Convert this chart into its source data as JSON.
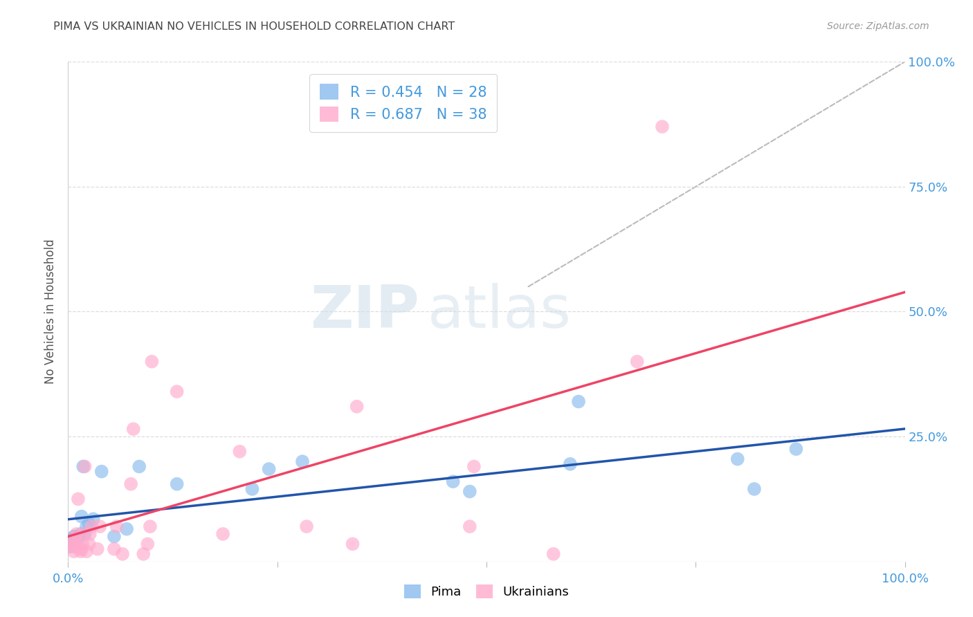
{
  "title": "PIMA VS UKRAINIAN NO VEHICLES IN HOUSEHOLD CORRELATION CHART",
  "source": "Source: ZipAtlas.com",
  "ylabel": "No Vehicles in Household",
  "xlim": [
    0,
    1
  ],
  "ylim": [
    0,
    1
  ],
  "xtick_vals": [
    0.0,
    0.25,
    0.5,
    0.75,
    1.0
  ],
  "xtick_labels_show": [
    "0.0%",
    "",
    "",
    "",
    "100.0%"
  ],
  "ytick_vals": [
    0.0,
    0.25,
    0.5,
    0.75,
    1.0
  ],
  "ytick_labels_right": [
    "",
    "25.0%",
    "50.0%",
    "75.0%",
    "100.0%"
  ],
  "pima_color": "#88BBEE",
  "ukrainian_color": "#FFAACC",
  "pima_line_color": "#2255AA",
  "ukrainian_line_color": "#EE4466",
  "diagonal_color": "#BBBBBB",
  "pima_R": 0.454,
  "pima_N": 28,
  "ukrainian_R": 0.687,
  "ukrainian_N": 38,
  "legend_label_pima": "Pima",
  "legend_label_ukrainian": "Ukrainians",
  "watermark_zip": "ZIP",
  "watermark_atlas": "atlas",
  "background_color": "#FFFFFF",
  "grid_color": "#DDDDDD",
  "pima_x": [
    0.003,
    0.005,
    0.007,
    0.008,
    0.01,
    0.012,
    0.015,
    0.016,
    0.018,
    0.02,
    0.022,
    0.025,
    0.03,
    0.04,
    0.055,
    0.07,
    0.085,
    0.13,
    0.22,
    0.24,
    0.28,
    0.46,
    0.48,
    0.6,
    0.61,
    0.8,
    0.82,
    0.87
  ],
  "pima_y": [
    0.03,
    0.04,
    0.05,
    0.05,
    0.04,
    0.05,
    0.055,
    0.09,
    0.19,
    0.055,
    0.07,
    0.075,
    0.085,
    0.18,
    0.05,
    0.065,
    0.19,
    0.155,
    0.145,
    0.185,
    0.2,
    0.16,
    0.14,
    0.195,
    0.32,
    0.205,
    0.145,
    0.225
  ],
  "ukrainian_x": [
    0.003,
    0.004,
    0.007,
    0.008,
    0.009,
    0.01,
    0.012,
    0.015,
    0.016,
    0.017,
    0.018,
    0.02,
    0.022,
    0.025,
    0.026,
    0.028,
    0.035,
    0.038,
    0.055,
    0.058,
    0.065,
    0.075,
    0.078,
    0.09,
    0.095,
    0.098,
    0.1,
    0.13,
    0.185,
    0.205,
    0.285,
    0.34,
    0.345,
    0.48,
    0.485,
    0.58,
    0.68,
    0.71
  ],
  "ukrainian_y": [
    0.03,
    0.04,
    0.02,
    0.03,
    0.045,
    0.055,
    0.125,
    0.02,
    0.025,
    0.035,
    0.055,
    0.19,
    0.02,
    0.035,
    0.055,
    0.07,
    0.025,
    0.07,
    0.025,
    0.07,
    0.015,
    0.155,
    0.265,
    0.015,
    0.035,
    0.07,
    0.4,
    0.34,
    0.055,
    0.22,
    0.07,
    0.035,
    0.31,
    0.07,
    0.19,
    0.015,
    0.4,
    0.87
  ]
}
